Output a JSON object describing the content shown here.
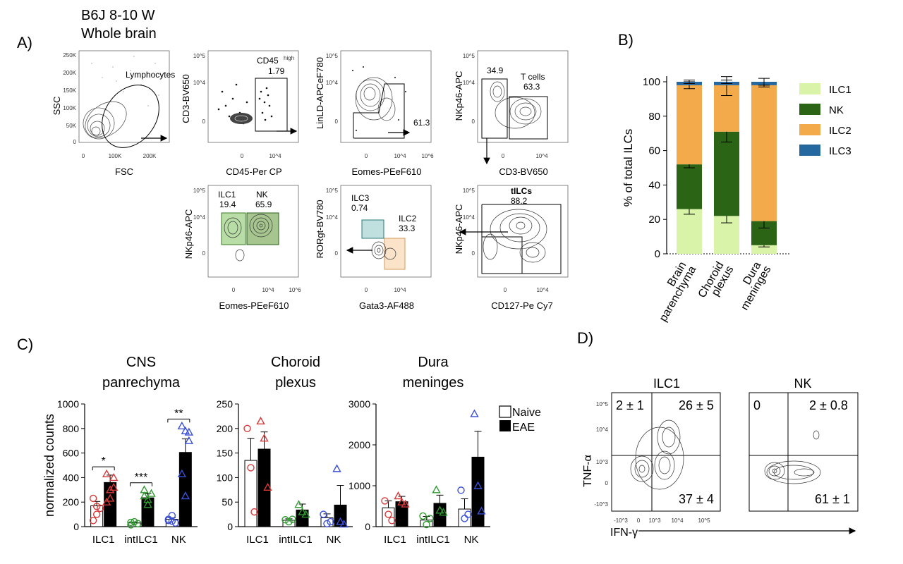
{
  "panel_labels": {
    "a": "A)",
    "b": "B)",
    "c": "C)",
    "d": "D)"
  },
  "panelA": {
    "title_line1": "B6J 8-10 W",
    "title_line2": "Whole brain",
    "plots": [
      {
        "xlabel": "FSC",
        "ylabel": "SSC",
        "gates": [
          "Lymphocytes"
        ],
        "yticks": [
          "250K",
          "200K",
          "150K",
          "100K",
          "50K",
          "0"
        ],
        "xticks": [
          "0",
          "100K",
          "200K"
        ]
      },
      {
        "xlabel": "CD45-Per CP",
        "ylabel": "CD3-BV650",
        "gates": [
          "CD45",
          "high",
          "1.79"
        ],
        "yticks": [
          "10^5",
          "10^4",
          "0"
        ],
        "xticks": [
          "0",
          "10^4"
        ]
      },
      {
        "xlabel": "Eomes-PEeF610",
        "ylabel": "LinLD-APCeF780",
        "gates": [
          "61.3"
        ],
        "yticks": [
          "10^5",
          "10^4",
          "0"
        ],
        "xticks": [
          "0",
          "10^4",
          "10^6"
        ]
      },
      {
        "xlabel": "CD3-BV650",
        "ylabel": "NKp46-APC",
        "gates": [
          "34.9",
          "T cells",
          "63.3"
        ],
        "yticks": [
          "10^5",
          "10^4",
          "0"
        ],
        "xticks": [
          "0",
          "10^4"
        ]
      },
      {
        "xlabel": "Eomes-PEeF610",
        "ylabel": "NKp46-APC",
        "gates": [
          "ILC1",
          "19.4",
          "NK",
          "65.9"
        ],
        "yticks": [
          "10^5",
          "10^4",
          "0"
        ],
        "xticks": [
          "0",
          "10^4",
          "10^6"
        ]
      },
      {
        "xlabel": "Gata3-AF488",
        "ylabel": "RORgt-BV780",
        "gates": [
          "ILC3",
          "0.74",
          "ILC2",
          "33.3"
        ],
        "yticks": [
          "10^5",
          "10^4",
          "0"
        ],
        "xticks": [
          "0",
          "10^4"
        ]
      },
      {
        "xlabel": "CD127-Pe Cy7",
        "ylabel": "NKp46-APC",
        "gates": [
          "tILCs",
          "88.2"
        ],
        "yticks": [
          "10^5",
          "10^4",
          "0"
        ],
        "xticks": [
          "0",
          "10^4"
        ]
      }
    ]
  },
  "chart_data": [
    {
      "type": "bar",
      "stacked": true,
      "ylabel": "% of total ILCs",
      "ylim": [
        0,
        100
      ],
      "yticks": [
        0,
        20,
        40,
        60,
        80,
        100
      ],
      "categories": [
        "Brain parenchyma",
        "Choroid plexus",
        "Dura meninges"
      ],
      "category_lines": [
        [
          "Brain",
          "parenchyma"
        ],
        [
          "Choroid",
          "plexus"
        ],
        [
          "Dura",
          "meninges"
        ]
      ],
      "series": [
        {
          "name": "ILC1",
          "color": "#d9f4a8",
          "values": [
            26,
            22,
            5
          ],
          "err": [
            3,
            4,
            1
          ]
        },
        {
          "name": "NK",
          "color": "#2b6415",
          "values": [
            26,
            49,
            14
          ],
          "err": [
            2,
            6,
            4
          ]
        },
        {
          "name": "ILC2",
          "color": "#f2aa4b",
          "values": [
            46,
            27,
            79
          ],
          "err": [
            2,
            6,
            1
          ]
        },
        {
          "name": "ILC3",
          "color": "#25679f",
          "values": [
            2,
            2,
            2
          ],
          "err": [
            1,
            1,
            2
          ]
        }
      ],
      "legend": "right"
    },
    {
      "type": "bar",
      "title_lines": [
        "CNS",
        "panrechyma"
      ],
      "ylabel": "normalized counts",
      "ylim": [
        0,
        1000
      ],
      "yticks": [
        0,
        200,
        400,
        600,
        800,
        1000
      ],
      "categories": [
        "ILC1",
        "intILC1",
        "NK"
      ],
      "series": [
        {
          "name": "Naive",
          "values": [
            170,
            30,
            60
          ],
          "err": [
            35,
            8,
            12
          ]
        },
        {
          "name": "EAE",
          "values": [
            360,
            235,
            605
          ],
          "err": [
            60,
            35,
            110
          ]
        }
      ],
      "points_naive": [
        [
          230,
          100,
          150,
          50,
          165
        ],
        [
          15,
          40,
          25,
          35
        ],
        [
          50,
          90,
          30,
          60,
          45
        ]
      ],
      "points_eae": [
        [
          430,
          300,
          400,
          200,
          230,
          320
        ],
        [
          300,
          180,
          270,
          250,
          220
        ],
        [
          820,
          780,
          700,
          430,
          250,
          770
        ]
      ],
      "point_colors": [
        "#d63a3a",
        "#2f9a2f",
        "#3a4fd6"
      ],
      "significance": [
        "*",
        "***",
        "**"
      ]
    },
    {
      "type": "bar",
      "title_lines": [
        "Choroid",
        "plexus"
      ],
      "ylabel": "",
      "ylim": [
        0,
        250
      ],
      "yticks": [
        0,
        50,
        100,
        150,
        200,
        250
      ],
      "categories": [
        "ILC1",
        "intILC1",
        "NK"
      ],
      "series": [
        {
          "name": "Naive",
          "values": [
            135,
            13,
            18
          ],
          "err": [
            45,
            3,
            8
          ]
        },
        {
          "name": "EAE",
          "values": [
            158,
            34,
            44
          ],
          "err": [
            35,
            12,
            40
          ]
        }
      ],
      "points_naive": [
        [
          200,
          120,
          30
        ],
        [
          14,
          10,
          15
        ],
        [
          25,
          6,
          10
        ]
      ],
      "points_eae": [
        [
          215,
          180,
          80
        ],
        [
          45,
          30,
          25
        ],
        [
          118,
          10,
          5
        ]
      ],
      "point_colors": [
        "#d63a3a",
        "#2f9a2f",
        "#3a4fd6"
      ],
      "significance": []
    },
    {
      "type": "bar",
      "title_lines": [
        "Dura",
        "meninges"
      ],
      "ylabel": "",
      "ylim": [
        0,
        3000
      ],
      "yticks": [
        0,
        1000,
        2000,
        3000
      ],
      "categories": [
        "ILC1",
        "intILC1",
        "NK"
      ],
      "series": [
        {
          "name": "Naive",
          "values": [
            460,
            160,
            430
          ],
          "err": [
            170,
            90,
            250
          ]
        },
        {
          "name": "EAE",
          "values": [
            610,
            570,
            1700
          ],
          "err": [
            130,
            200,
            630
          ]
        }
      ],
      "points_naive": [
        [
          630,
          300,
          150
        ],
        [
          260,
          50,
          200
        ],
        [
          890,
          200,
          300
        ]
      ],
      "points_eae": [
        [
          750,
          600,
          550
        ],
        [
          900,
          400,
          350
        ],
        [
          2760,
          1000,
          380
        ]
      ],
      "point_colors": [
        "#d63a3a",
        "#2f9a2f",
        "#3a4fd6"
      ],
      "significance": []
    }
  ],
  "panelC_legend": {
    "naive": "Naive",
    "eae": "EAE"
  },
  "panelD": {
    "ylabel": "TNF-α",
    "xlabel": "IFN-γ",
    "plots": [
      {
        "title": "ILC1",
        "ul": "2 ± 1",
        "ur": "26 ± 5",
        "lr": "37 ± 4"
      },
      {
        "title": "NK",
        "ul": "0",
        "ur": "2 ± 0.8",
        "lr": "61 ± 1"
      }
    ],
    "yticks": [
      "10^5",
      "10^4",
      "10^3",
      "0",
      "-10^3"
    ],
    "xticks": [
      "-10^3",
      "0",
      "10^3",
      "10^4",
      "10^5"
    ]
  }
}
